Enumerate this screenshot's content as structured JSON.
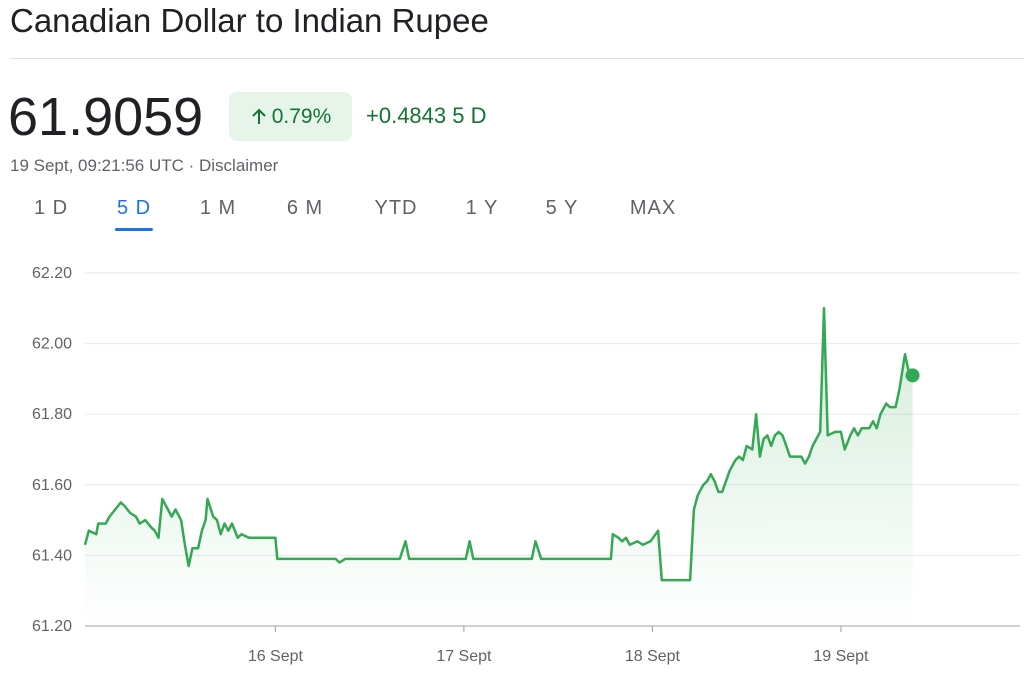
{
  "header": {
    "title": "Canadian Dollar to Indian Rupee",
    "price": "61.9059",
    "percent_change": "0.79%",
    "change": "+0.4843",
    "period": "5 D",
    "timestamp": "19 Sept, 09:21:56 UTC · Disclaimer"
  },
  "tabs": {
    "labels": [
      "1 D",
      "5 D",
      "1 M",
      "6 M",
      "YTD",
      "1 Y",
      "5 Y",
      "MAX"
    ],
    "selected_index": 1
  },
  "chart_data": {
    "type": "line",
    "color": "#34a853",
    "grid": true,
    "xlim": [
      14.99,
      19.95
    ],
    "ylim": [
      61.2,
      62.2
    ],
    "xticks": [
      {
        "value": 16,
        "label": "16 Sept"
      },
      {
        "value": 17,
        "label": "17 Sept"
      },
      {
        "value": 18,
        "label": "18 Sept"
      },
      {
        "value": 19,
        "label": "19 Sept"
      }
    ],
    "yticks": [
      {
        "value": 61.2,
        "label": "61.20"
      },
      {
        "value": 61.4,
        "label": "61.40"
      },
      {
        "value": 61.6,
        "label": "61.60"
      },
      {
        "value": 61.8,
        "label": "61.80"
      },
      {
        "value": 62.0,
        "label": "62.00"
      },
      {
        "value": 62.2,
        "label": "62.20"
      }
    ],
    "x": [
      14.99,
      15.01,
      15.05,
      15.06,
      15.1,
      15.12,
      15.15,
      15.18,
      15.2,
      15.23,
      15.26,
      15.28,
      15.31,
      15.34,
      15.36,
      15.38,
      15.4,
      15.43,
      15.45,
      15.47,
      15.5,
      15.52,
      15.54,
      15.56,
      15.59,
      15.61,
      15.63,
      15.64,
      15.67,
      15.69,
      15.71,
      15.73,
      15.75,
      15.77,
      15.8,
      15.82,
      15.86,
      16.0,
      16.01,
      16.32,
      16.34,
      16.37,
      16.64,
      16.66,
      16.69,
      16.71,
      17.01,
      17.03,
      17.05,
      17.36,
      17.38,
      17.41,
      17.78,
      17.79,
      17.82,
      17.84,
      17.86,
      17.88,
      17.92,
      17.95,
      17.99,
      18.03,
      18.05,
      18.2,
      18.22,
      18.24,
      18.27,
      18.29,
      18.31,
      18.33,
      18.35,
      18.37,
      18.39,
      18.41,
      18.44,
      18.46,
      18.48,
      18.5,
      18.53,
      18.55,
      18.57,
      18.59,
      18.61,
      18.63,
      18.65,
      18.67,
      18.69,
      18.71,
      18.73,
      18.76,
      18.79,
      18.81,
      18.83,
      18.85,
      18.87,
      18.89,
      18.91,
      18.93,
      18.97,
      19.0,
      19.02,
      19.05,
      19.07,
      19.09,
      19.11,
      19.13,
      19.15,
      19.17,
      19.19,
      19.21,
      19.24,
      19.26,
      19.29,
      19.31,
      19.34,
      19.36,
      19.38
    ],
    "values": [
      61.43,
      61.47,
      61.46,
      61.49,
      61.49,
      61.51,
      61.53,
      61.55,
      61.54,
      61.52,
      61.51,
      61.49,
      61.5,
      61.48,
      61.47,
      61.45,
      61.56,
      61.53,
      61.51,
      61.53,
      61.5,
      61.43,
      61.37,
      61.42,
      61.42,
      61.47,
      61.5,
      61.56,
      61.51,
      61.5,
      61.46,
      61.49,
      61.47,
      61.49,
      61.45,
      61.46,
      61.45,
      61.45,
      61.39,
      61.39,
      61.38,
      61.39,
      61.39,
      61.39,
      61.44,
      61.39,
      61.39,
      61.44,
      61.39,
      61.39,
      61.44,
      61.39,
      61.39,
      61.46,
      61.45,
      61.44,
      61.45,
      61.43,
      61.44,
      61.43,
      61.44,
      61.47,
      61.33,
      61.33,
      61.53,
      61.57,
      61.6,
      61.61,
      61.63,
      61.61,
      61.58,
      61.58,
      61.61,
      61.64,
      61.67,
      61.68,
      61.67,
      61.71,
      61.7,
      61.8,
      61.68,
      61.73,
      61.74,
      61.71,
      61.74,
      61.75,
      61.74,
      61.71,
      61.68,
      61.68,
      61.68,
      61.66,
      61.68,
      61.71,
      61.73,
      61.75,
      62.1,
      61.74,
      61.75,
      61.75,
      61.7,
      61.74,
      61.76,
      61.74,
      61.76,
      61.76,
      61.76,
      61.78,
      61.76,
      61.8,
      61.83,
      61.82,
      61.82,
      61.87,
      61.97,
      61.92,
      61.91
    ]
  }
}
